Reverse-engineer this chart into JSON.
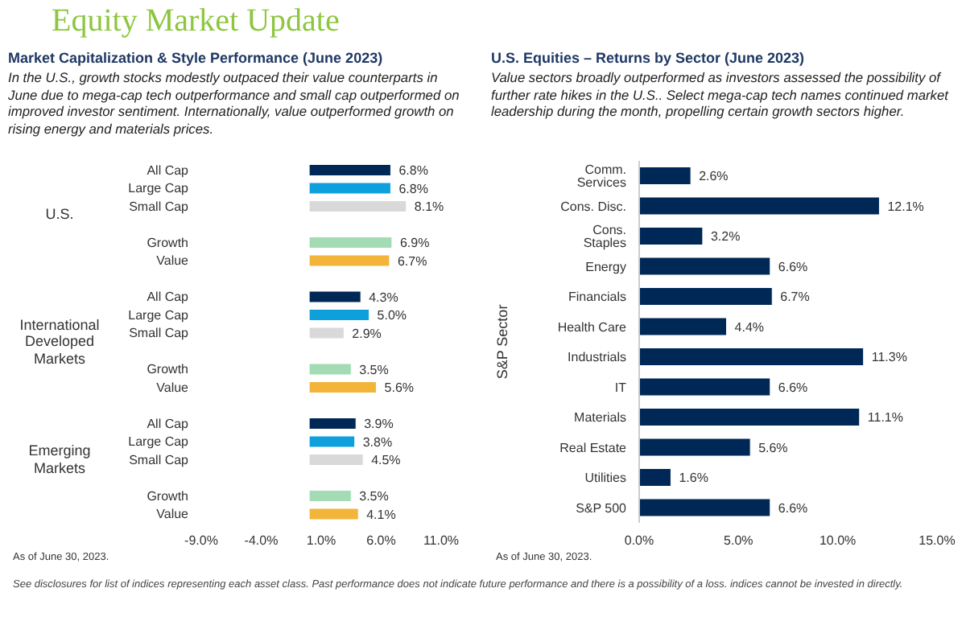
{
  "chart_data": [
    {
      "type": "bar",
      "orientation": "horizontal",
      "title": "Market Capitalization & Style Performance (June 2023)",
      "subtitle": "In the U.S., growth stocks modestly outpaced their value counterparts in June due to mega-cap tech outperformance and small cap outperformed on improved investor sentiment. Internationally, value outperformed growth on rising energy and materials prices.",
      "categories": [
        "All Cap",
        "Large Cap",
        "Small Cap",
        null,
        "Growth",
        "Value",
        null,
        "All Cap",
        "Large Cap",
        "Small Cap",
        null,
        "Growth",
        "Value",
        null,
        "All Cap",
        "Large Cap",
        "Small Cap",
        null,
        "Growth",
        "Value"
      ],
      "values": [
        6.8,
        6.8,
        8.1,
        null,
        6.9,
        6.7,
        null,
        4.3,
        5.0,
        2.9,
        null,
        3.5,
        5.6,
        null,
        3.9,
        3.8,
        4.5,
        null,
        3.5,
        4.1
      ],
      "value_labels": [
        "6.8%",
        "6.8%",
        "8.1%",
        null,
        "6.9%",
        "6.7%",
        null,
        "4.3%",
        "5.0%",
        "2.9%",
        null,
        "3.5%",
        "5.6%",
        null,
        "3.9%",
        "3.8%",
        "4.5%",
        null,
        "3.5%",
        "4.1%"
      ],
      "colors": [
        "#002856",
        "#0ea0dd",
        "#d9d9d9",
        null,
        "#a3dbb4",
        "#f2b53a",
        null,
        "#002856",
        "#0ea0dd",
        "#d9d9d9",
        null,
        "#a3dbb4",
        "#f2b53a",
        null,
        "#002856",
        "#0ea0dd",
        "#d9d9d9",
        null,
        "#a3dbb4",
        "#f2b53a"
      ],
      "xlim": [
        -9,
        11
      ],
      "xticks": [
        {
          "value": -9,
          "label": "-9.0%"
        },
        {
          "value": -4,
          "label": "-4.0%"
        },
        {
          "value": 1,
          "label": "1.0%"
        },
        {
          "value": 6,
          "label": "6.0%"
        },
        {
          "value": 11,
          "label": "11.0%"
        }
      ],
      "annotations": [
        "Equity Market Update",
        "U.S.",
        "International Developed Markets",
        "Emerging Markets",
        "As of June 30, 2023."
      ]
    },
    {
      "type": "bar",
      "orientation": "horizontal",
      "title": "U.S. Equities – Returns by Sector (June 2023)",
      "subtitle": "Value sectors broadly outperformed as investors assessed the possibility of further rate hikes in the U.S.. Select mega-cap tech names continued market leadership during the month, propelling certain growth sectors higher.",
      "ylabel": "S&P Sector",
      "categories": [
        "Comm. Services",
        "Cons. Disc.",
        "Cons. Staples",
        "Energy",
        "Financials",
        "Health Care",
        "Industrials",
        "IT",
        "Materials",
        "Real Estate",
        "Utilities",
        "S&P 500"
      ],
      "values": [
        2.6,
        12.1,
        3.2,
        6.6,
        6.7,
        4.4,
        11.3,
        6.6,
        11.1,
        5.6,
        1.6,
        6.6
      ],
      "value_labels": [
        "2.6%",
        "12.1%",
        "3.2%",
        "6.6%",
        "6.7%",
        "4.4%",
        "11.3%",
        "6.6%",
        "11.1%",
        "5.6%",
        "1.6%",
        "6.6%"
      ],
      "colors": [
        "#002856",
        "#002856",
        "#002856",
        "#002856",
        "#002856",
        "#002856",
        "#002856",
        "#002856",
        "#002856",
        "#002856",
        "#002856",
        "#002856"
      ],
      "xlim": [
        0,
        15
      ],
      "xticks": [
        {
          "value": 0,
          "label": "0.0%"
        },
        {
          "value": 5,
          "label": "5.0%"
        },
        {
          "value": 10,
          "label": "10.0%"
        },
        {
          "value": 15,
          "label": "15.0%"
        }
      ],
      "annotations": [
        "As of June 30, 2023.",
        "See disclosures for list of indices representing each asset class. Past performance does not indicate future performance and there is a possibility of a loss. indices cannot be invested in directly."
      ]
    }
  ]
}
